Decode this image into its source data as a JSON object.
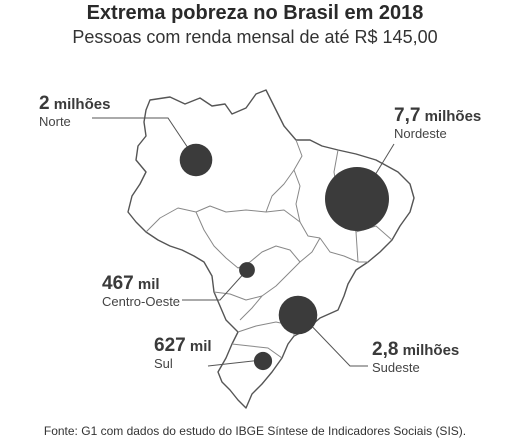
{
  "title": "Extrema pobreza no Brasil em 2018",
  "subtitle": "Pessoas com renda mensal de até R$ 145,00",
  "regions": [
    {
      "id": "norte",
      "number": "2",
      "unit": "milhões",
      "name": "Norte",
      "people_millions": 2.0
    },
    {
      "id": "nordeste",
      "number": "7,7",
      "unit": "milhões",
      "name": "Nordeste",
      "people_millions": 7.7
    },
    {
      "id": "centro-oeste",
      "number": "467",
      "unit": "mil",
      "name": "Centro-Oeste",
      "people_millions": 0.467
    },
    {
      "id": "sudeste",
      "number": "2,8",
      "unit": "milhões",
      "name": "Sudeste",
      "people_millions": 2.8
    },
    {
      "id": "sul",
      "number": "627",
      "unit": "mil",
      "name": "Sul",
      "people_millions": 0.627
    }
  ],
  "source": "Fonte: G1 com dados do estudo do IBGE Síntese de Indicadores Sociais (SIS).",
  "colors": {
    "bubble": "#3b3b3b",
    "map_fill": "#ffffff",
    "map_stroke": "#555555",
    "border": "#888888",
    "leader": "#555555"
  }
}
